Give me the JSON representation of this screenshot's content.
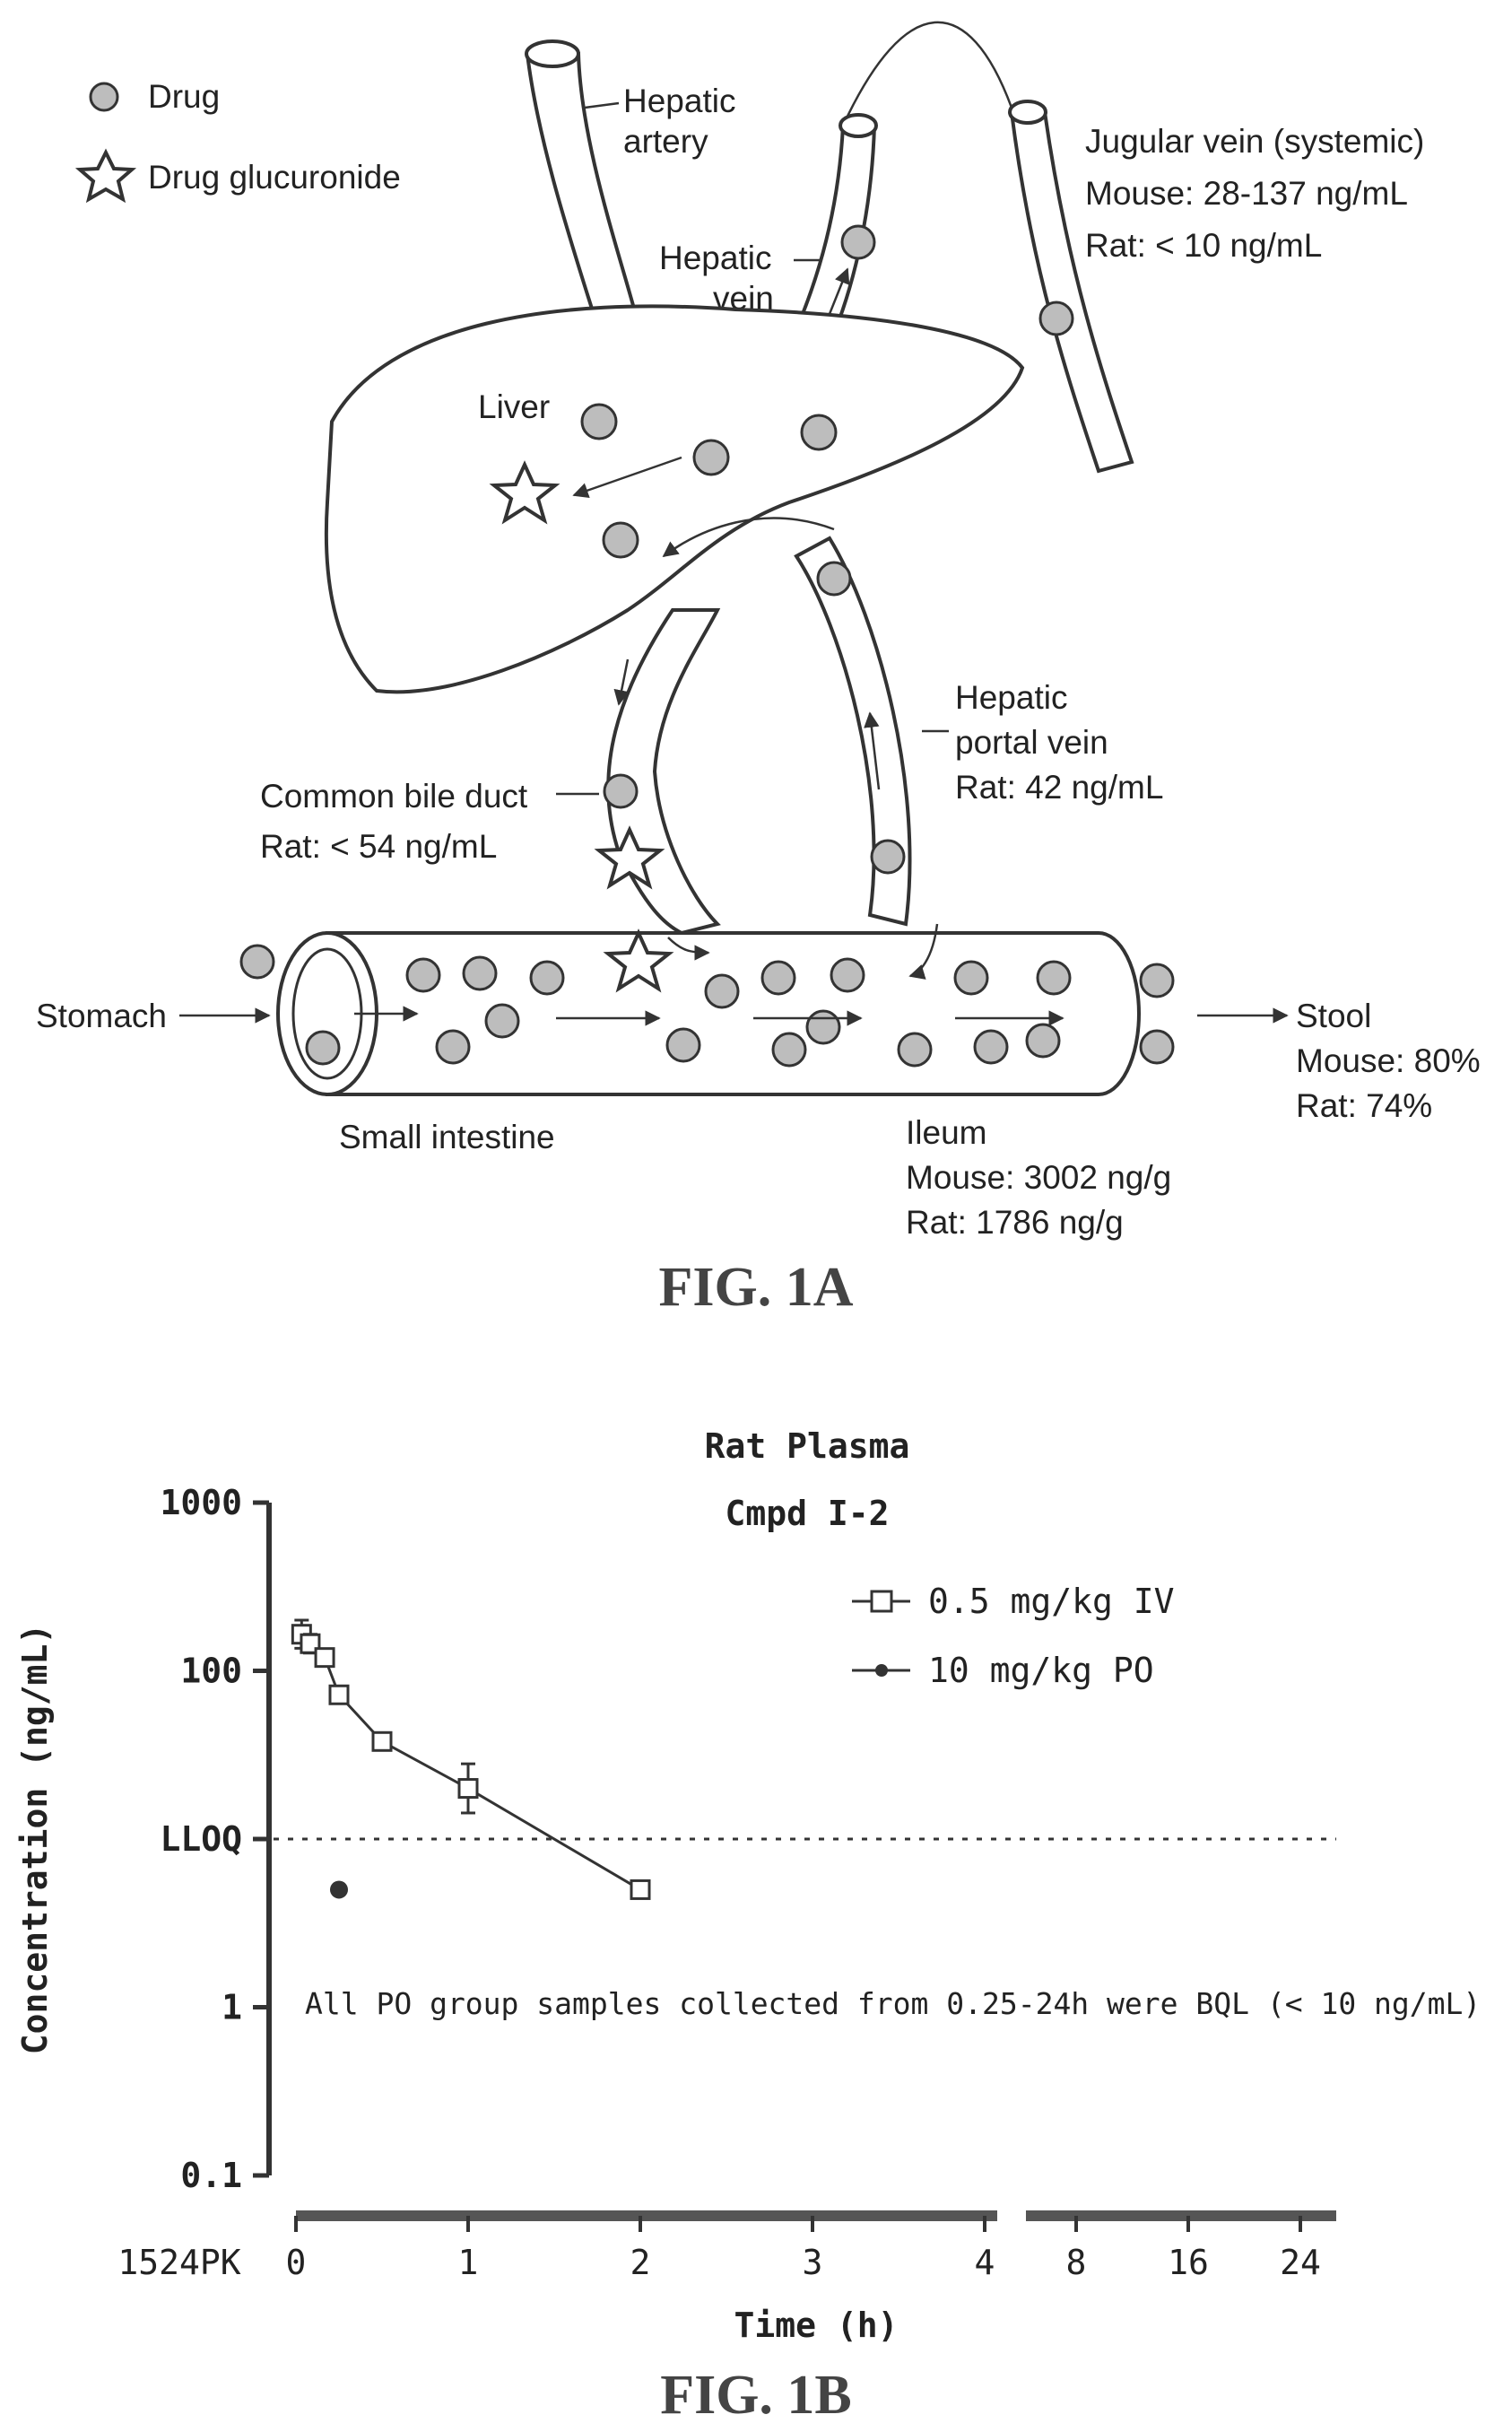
{
  "fig1a": {
    "legend": {
      "drug": "Drug",
      "glucuronide": "Drug glucuronide"
    },
    "hepatic_artery": [
      "Hepatic",
      "artery"
    ],
    "hepatic_vein": [
      "Hepatic",
      "vein"
    ],
    "jugular": [
      "Jugular vein (systemic)",
      "Mouse: 28-137 ng/mL",
      "Rat: < 10 ng/mL"
    ],
    "liver": "Liver",
    "portal": [
      "Hepatic",
      "portal vein",
      "Rat: 42 ng/mL"
    ],
    "bile": [
      "Common bile duct",
      "Rat: < 54 ng/mL"
    ],
    "stomach": "Stomach",
    "small_intestine": "Small intestine",
    "stool": [
      "Stool",
      "Mouse: 80%",
      "Rat: 74%"
    ],
    "ileum": [
      "Ileum",
      "Mouse: 3002 ng/g",
      "Rat: 1786 ng/g"
    ],
    "caption": "FIG. 1A"
  },
  "fig1b": {
    "caption": "FIG. 1B",
    "corner_label": "1524PK",
    "note": "All PO group samples collected from 0.25-24h were BQL (< 10 ng/mL)",
    "lloq_label": "LLOQ"
  },
  "chart_data": {
    "type": "line",
    "title": "Rat Plasma",
    "subtitle": "Cmpd I-2",
    "xlabel": "Time (h)",
    "ylabel": "Concentration (ng/mL)",
    "y_scale": "log",
    "ylim": [
      0.1,
      1000
    ],
    "y_ticks": [
      {
        "value": 1000,
        "label": "1000"
      },
      {
        "value": 100,
        "label": "100"
      },
      {
        "value": 10,
        "label": "LLOQ"
      },
      {
        "value": 1,
        "label": "1"
      },
      {
        "value": 0.1,
        "label": "0.1"
      }
    ],
    "x_axis_break": true,
    "x_ticks_left": [
      0,
      1,
      2,
      3,
      4
    ],
    "x_ticks_right": [
      8,
      16,
      24
    ],
    "lloq": 10,
    "series": [
      {
        "name": "0.5 mg/kg IV",
        "marker": "open-square",
        "x": [
          0.033,
          0.083,
          0.167,
          0.25,
          0.5,
          1,
          2
        ],
        "y": [
          165,
          145,
          120,
          72,
          38,
          20,
          5
        ],
        "error_upper": [
          200,
          165,
          120,
          72,
          38,
          28,
          5
        ]
      },
      {
        "name": "10 mg/kg PO",
        "marker": "filled-circle",
        "x": [
          0.25
        ],
        "y": [
          5
        ]
      }
    ]
  }
}
